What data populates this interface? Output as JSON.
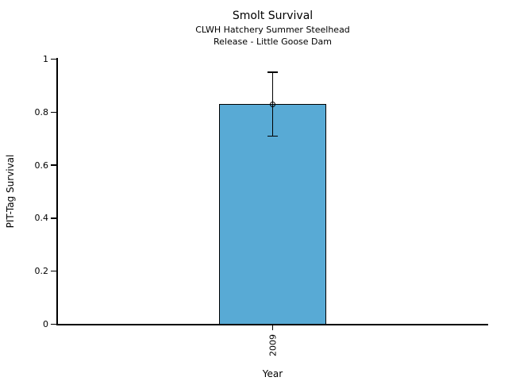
{
  "chart_data": {
    "type": "bar",
    "title": "Smolt Survival",
    "subtitle_lines": [
      "CLWH Hatchery Summer Steelhead",
      "Release - Little Goose Dam"
    ],
    "xlabel": "Year",
    "ylabel": "PIT-Tag Survival",
    "categories": [
      "2009"
    ],
    "series": [
      {
        "name": "PIT-Tag Survival",
        "values": [
          0.83
        ],
        "error_low": [
          0.71
        ],
        "error_high": [
          0.95
        ]
      }
    ],
    "ylim": [
      0,
      1
    ],
    "yticks": [
      0,
      0.2,
      0.4,
      0.6,
      0.8,
      1
    ],
    "ytick_labels": [
      "0",
      "0.2",
      "0.4",
      "0.6",
      "0.8",
      "1"
    ],
    "grid": false,
    "legend": "none",
    "marker": "open-circle",
    "colors": {
      "bar_fill": "#58AAD5",
      "bar_border": "#000000",
      "axis": "#000000",
      "text": "#000000",
      "background": "#ffffff"
    }
  }
}
